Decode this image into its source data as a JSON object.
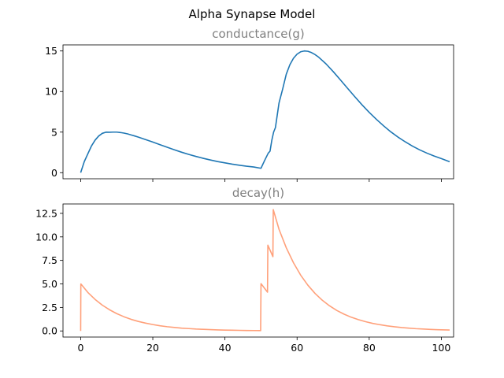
{
  "figure": {
    "title": "Alpha Synapse Model"
  },
  "chart_data": [
    {
      "type": "line",
      "title": "conductance(g)",
      "title_color": "#808080",
      "xlabel": "",
      "ylabel": "",
      "xlim": [
        -4.9,
        103.4
      ],
      "ylim": [
        -0.75,
        15.75
      ],
      "x_ticks": [
        0,
        20,
        40,
        60,
        80,
        100
      ],
      "x_tick_labels_visible": false,
      "y_ticks": [
        0,
        5,
        10,
        15
      ],
      "y_tick_labels": [
        "0",
        "5",
        "10",
        "15"
      ],
      "grid": false,
      "legend": "none",
      "series": [
        {
          "color": "#1f77b4",
          "x": [
            0,
            1,
            2,
            3,
            4,
            5,
            6,
            7,
            8,
            9,
            10,
            11,
            12,
            13,
            14,
            15,
            16,
            18,
            20,
            22,
            24,
            26,
            28,
            30,
            32,
            34,
            36,
            38,
            40,
            42,
            44,
            46,
            48,
            49.9,
            50,
            51,
            52,
            52.5,
            53,
            53.5,
            54,
            55,
            56,
            57,
            58,
            59,
            60,
            61,
            62,
            63,
            64,
            65,
            66,
            68,
            70,
            72,
            74,
            76,
            78,
            80,
            82,
            84,
            86,
            88,
            90,
            92,
            94,
            96,
            98,
            100,
            102.3
          ],
          "y": [
            0,
            1.36,
            2.34,
            3.3,
            4.01,
            4.52,
            4.85,
            4.99,
            4.98,
            5.0,
            5.0,
            4.95,
            4.88,
            4.78,
            4.65,
            4.52,
            4.38,
            4.08,
            3.77,
            3.45,
            3.13,
            2.82,
            2.52,
            2.25,
            2.0,
            1.77,
            1.56,
            1.37,
            1.21,
            1.05,
            0.92,
            0.8,
            0.7,
            0.55,
            0.55,
            1.5,
            2.4,
            2.65,
            4.0,
            5.0,
            5.56,
            8.6,
            10.3,
            12.13,
            13.3,
            14.1,
            14.61,
            14.9,
            15.0,
            14.96,
            14.8,
            14.55,
            14.23,
            13.42,
            12.47,
            11.44,
            10.4,
            9.37,
            8.37,
            7.43,
            6.57,
            5.77,
            5.03,
            4.38,
            3.8,
            3.27,
            2.81,
            2.41,
            2.05,
            1.74,
            1.35
          ]
        }
      ]
    },
    {
      "type": "line",
      "title": "decay(h)",
      "title_color": "#808080",
      "xlabel": "",
      "ylabel": "",
      "xlim": [
        -4.9,
        103.4
      ],
      "ylim": [
        -0.65,
        13.5
      ],
      "x_ticks": [
        0,
        20,
        40,
        60,
        80,
        100
      ],
      "x_tick_labels": [
        "0",
        "20",
        "40",
        "60",
        "80",
        "100"
      ],
      "y_ticks": [
        0,
        2.5,
        5,
        7.5,
        10,
        12.5
      ],
      "y_tick_labels": [
        "0.0",
        "2.5",
        "5.0",
        "7.5",
        "10.0",
        "12.5"
      ],
      "grid": false,
      "legend": "none",
      "series": [
        {
          "color": "#ffa07a",
          "x": [
            0,
            0.05,
            2,
            4,
            6,
            8,
            10,
            12,
            14,
            16,
            18,
            20,
            22,
            24,
            26,
            28,
            30,
            32,
            34,
            36,
            38,
            40,
            42,
            44,
            46,
            48,
            49.9,
            50.0,
            51.8,
            51.9,
            53.3,
            53.4,
            55,
            57,
            59,
            61,
            63,
            65,
            67,
            69,
            71,
            73,
            75,
            77,
            79,
            81,
            83,
            85,
            87,
            89,
            91,
            93,
            95,
            97,
            99,
            102.3
          ],
          "y": [
            0,
            5.0,
            4.09,
            3.35,
            2.74,
            2.25,
            1.84,
            1.51,
            1.23,
            1.01,
            0.83,
            0.68,
            0.55,
            0.45,
            0.37,
            0.3,
            0.25,
            0.2,
            0.17,
            0.14,
            0.11,
            0.09,
            0.075,
            0.061,
            0.05,
            0.041,
            0.034,
            5.03,
            4.12,
            9.12,
            7.9,
            12.9,
            10.8,
            8.85,
            7.25,
            5.93,
            4.86,
            3.98,
            3.26,
            2.67,
            2.18,
            1.79,
            1.46,
            1.2,
            0.98,
            0.8,
            0.66,
            0.54,
            0.44,
            0.36,
            0.3,
            0.24,
            0.2,
            0.16,
            0.13,
            0.1
          ]
        }
      ]
    }
  ]
}
